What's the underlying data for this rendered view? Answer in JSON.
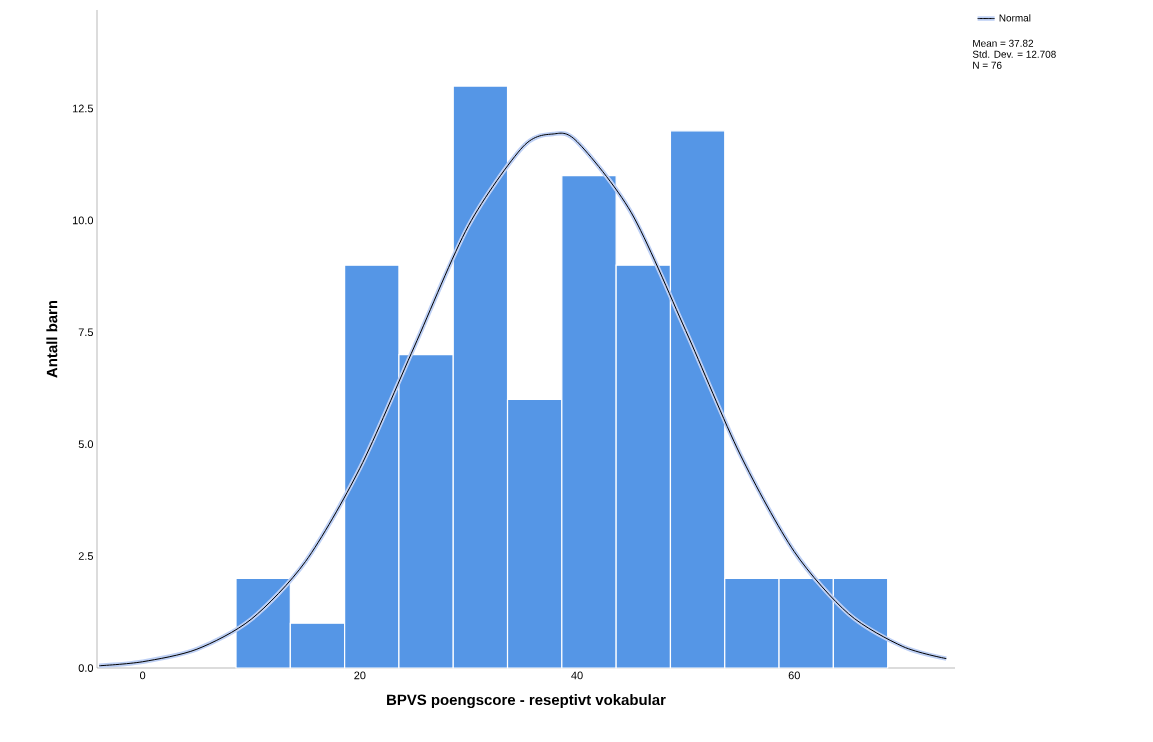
{
  "chart_data": {
    "type": "histogram",
    "xlabel": "BPVS poengscore - reseptivt vokabular",
    "ylabel": "Antall barn",
    "bins": [
      8.6,
      13.6,
      18.6,
      23.6,
      28.6,
      33.6,
      38.6,
      43.6,
      48.6,
      53.6,
      58.6,
      63.6,
      68.6
    ],
    "values": [
      2,
      1,
      9,
      7,
      13,
      6,
      11,
      9,
      12,
      2,
      2,
      2
    ],
    "color": "#5596e6",
    "series": [
      {
        "type": "line",
        "name": "Normal",
        "color": "#000000",
        "x": [
          -4,
          0,
          5,
          10,
          15,
          20,
          25,
          30,
          35,
          37.8,
          40,
          45,
          50,
          55,
          60,
          65,
          70,
          74
        ],
        "values": [
          0.05,
          0.14,
          0.42,
          1.09,
          2.38,
          4.46,
          7.17,
          9.88,
          11.64,
          11.93,
          11.76,
          10.17,
          7.54,
          4.78,
          2.6,
          1.21,
          0.48,
          0.21
        ]
      }
    ],
    "xlim": [
      -4.2,
      74.8
    ],
    "ylim": [
      0,
      14.7
    ],
    "xticks": [
      0,
      20,
      40,
      60
    ],
    "yticks": [
      {
        "value": 0,
        "label": "0.0"
      },
      {
        "value": 2.5,
        "label": "2.5"
      },
      {
        "value": 5,
        "label": "5.0"
      },
      {
        "value": 7.5,
        "label": "7.5"
      },
      {
        "value": 10,
        "label": "10.0"
      },
      {
        "value": 12.5,
        "label": "12.5"
      }
    ],
    "legend": "top right",
    "annotations": [
      "Mean = 37.82",
      "Std. Dev. = 12.708",
      "N = 76"
    ]
  }
}
